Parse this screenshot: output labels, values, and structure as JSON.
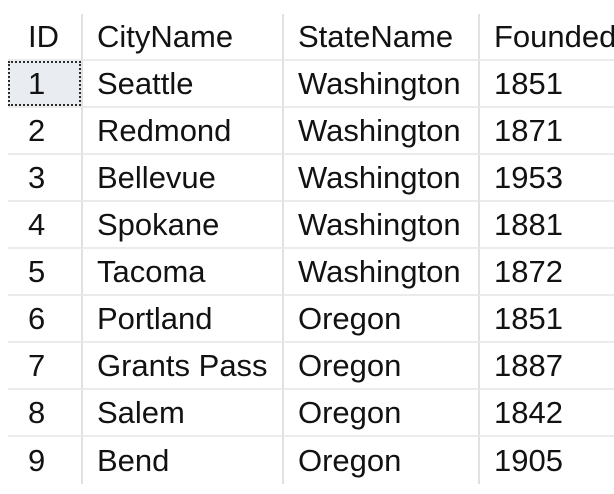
{
  "grid": {
    "columns": [
      "ID",
      "CityName",
      "StateName",
      "Founded"
    ],
    "rows": [
      [
        "1",
        "Seattle",
        "Washington",
        "1851"
      ],
      [
        "2",
        "Redmond",
        "Washington",
        "1871"
      ],
      [
        "3",
        "Bellevue",
        "Washington",
        "1953"
      ],
      [
        "4",
        "Spokane",
        "Washington",
        "1881"
      ],
      [
        "5",
        "Tacoma",
        "Washington",
        "1872"
      ],
      [
        "6",
        "Portland",
        "Oregon",
        "1851"
      ],
      [
        "7",
        "Grants Pass",
        "Oregon",
        "1887"
      ],
      [
        "8",
        "Salem",
        "Oregon",
        "1842"
      ],
      [
        "9",
        "Bend",
        "Oregon",
        "1905"
      ]
    ],
    "selection": {
      "row": 1,
      "column": "ID",
      "value": "1"
    },
    "colors": {
      "background": "#ffffff",
      "text": "#121212",
      "gridline_vertical": "#e1e1e1",
      "gridline_horizontal": "#ebebeb",
      "selected_cell_background": "#e9edf2",
      "selected_cell_border": "#2b2b2b"
    }
  }
}
